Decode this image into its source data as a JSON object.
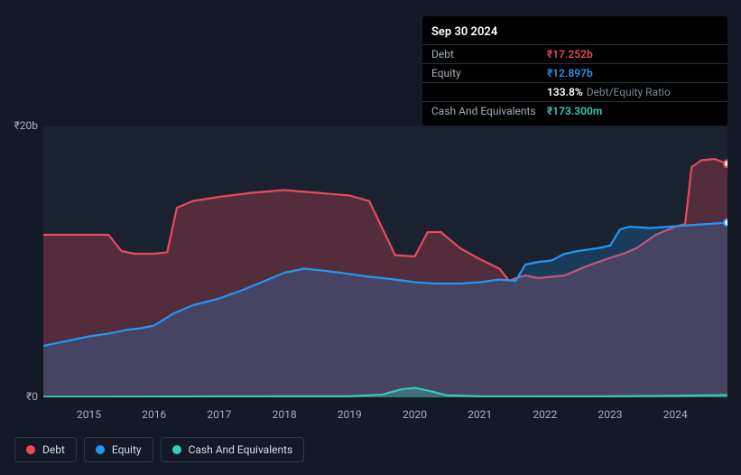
{
  "tooltip": {
    "date": "Sep 30 2024",
    "rows": [
      {
        "label": "Debt",
        "value": "₹17.252b",
        "color": "#e84a5f",
        "sub": ""
      },
      {
        "label": "Equity",
        "value": "₹12.897b",
        "color": "#2196f3",
        "sub": ""
      },
      {
        "label": "",
        "value": "133.8%",
        "color": "#ffffff",
        "sub": "Debt/Equity Ratio"
      },
      {
        "label": "Cash And Equivalents",
        "value": "₹173.300m",
        "color": "#35d0ba",
        "sub": ""
      }
    ]
  },
  "chart": {
    "type": "area",
    "background_color": "#1a2230",
    "page_background": "#131a25",
    "ylim": [
      0,
      20
    ],
    "yticks": [
      {
        "v": 0,
        "label": "₹0"
      },
      {
        "v": 20,
        "label": "₹20b"
      }
    ],
    "x_start_year": 2014.3,
    "x_end_year": 2024.8,
    "xticks": [
      2015,
      2016,
      2017,
      2018,
      2019,
      2020,
      2021,
      2022,
      2023,
      2024
    ],
    "series": [
      {
        "name": "Debt",
        "color": "#e84a5f",
        "fill": "rgba(232,74,95,0.28)",
        "line_width": 2.2,
        "points": [
          [
            2014.3,
            12.0
          ],
          [
            2014.7,
            12.0
          ],
          [
            2015.0,
            12.0
          ],
          [
            2015.3,
            12.0
          ],
          [
            2015.5,
            10.8
          ],
          [
            2015.7,
            10.6
          ],
          [
            2016.0,
            10.6
          ],
          [
            2016.2,
            10.7
          ],
          [
            2016.35,
            14.0
          ],
          [
            2016.6,
            14.5
          ],
          [
            2017.0,
            14.8
          ],
          [
            2017.5,
            15.1
          ],
          [
            2018.0,
            15.3
          ],
          [
            2018.5,
            15.1
          ],
          [
            2019.0,
            14.9
          ],
          [
            2019.3,
            14.5
          ],
          [
            2019.5,
            12.5
          ],
          [
            2019.7,
            10.5
          ],
          [
            2020.0,
            10.4
          ],
          [
            2020.2,
            12.2
          ],
          [
            2020.4,
            12.2
          ],
          [
            2020.7,
            11.0
          ],
          [
            2021.0,
            10.2
          ],
          [
            2021.3,
            9.5
          ],
          [
            2021.45,
            8.6
          ],
          [
            2021.55,
            8.8
          ],
          [
            2021.7,
            9.0
          ],
          [
            2021.9,
            8.8
          ],
          [
            2022.3,
            9.0
          ],
          [
            2022.7,
            9.8
          ],
          [
            2023.0,
            10.3
          ],
          [
            2023.2,
            10.6
          ],
          [
            2023.4,
            11.0
          ],
          [
            2023.7,
            12.0
          ],
          [
            2024.0,
            12.6
          ],
          [
            2024.15,
            12.8
          ],
          [
            2024.25,
            17.0
          ],
          [
            2024.4,
            17.5
          ],
          [
            2024.6,
            17.6
          ],
          [
            2024.8,
            17.25
          ]
        ]
      },
      {
        "name": "Equity",
        "color": "#2196f3",
        "fill": "rgba(33,150,243,0.22)",
        "line_width": 2.2,
        "points": [
          [
            2014.3,
            3.8
          ],
          [
            2014.7,
            4.2
          ],
          [
            2015.0,
            4.5
          ],
          [
            2015.3,
            4.7
          ],
          [
            2015.6,
            5.0
          ],
          [
            2015.8,
            5.1
          ],
          [
            2016.0,
            5.3
          ],
          [
            2016.3,
            6.2
          ],
          [
            2016.6,
            6.8
          ],
          [
            2017.0,
            7.3
          ],
          [
            2017.4,
            8.0
          ],
          [
            2017.8,
            8.8
          ],
          [
            2018.0,
            9.2
          ],
          [
            2018.3,
            9.5
          ],
          [
            2018.7,
            9.3
          ],
          [
            2019.0,
            9.1
          ],
          [
            2019.3,
            8.9
          ],
          [
            2019.7,
            8.7
          ],
          [
            2020.0,
            8.5
          ],
          [
            2020.3,
            8.4
          ],
          [
            2020.7,
            8.4
          ],
          [
            2021.0,
            8.5
          ],
          [
            2021.3,
            8.7
          ],
          [
            2021.55,
            8.6
          ],
          [
            2021.7,
            9.8
          ],
          [
            2021.9,
            10.0
          ],
          [
            2022.1,
            10.1
          ],
          [
            2022.3,
            10.6
          ],
          [
            2022.5,
            10.8
          ],
          [
            2022.8,
            11.0
          ],
          [
            2023.0,
            11.2
          ],
          [
            2023.15,
            12.4
          ],
          [
            2023.3,
            12.6
          ],
          [
            2023.6,
            12.5
          ],
          [
            2023.9,
            12.6
          ],
          [
            2024.2,
            12.7
          ],
          [
            2024.5,
            12.8
          ],
          [
            2024.8,
            12.9
          ]
        ]
      },
      {
        "name": "Cash And Equivalents",
        "color": "#35d0ba",
        "fill": "rgba(53,208,186,0.30)",
        "line_width": 2,
        "points": [
          [
            2014.3,
            0.05
          ],
          [
            2015.0,
            0.05
          ],
          [
            2016.0,
            0.06
          ],
          [
            2017.0,
            0.07
          ],
          [
            2018.0,
            0.08
          ],
          [
            2019.0,
            0.08
          ],
          [
            2019.5,
            0.2
          ],
          [
            2019.8,
            0.6
          ],
          [
            2020.0,
            0.7
          ],
          [
            2020.2,
            0.5
          ],
          [
            2020.5,
            0.15
          ],
          [
            2021.0,
            0.08
          ],
          [
            2022.0,
            0.07
          ],
          [
            2023.0,
            0.08
          ],
          [
            2024.0,
            0.12
          ],
          [
            2024.8,
            0.17
          ]
        ]
      }
    ]
  },
  "legend": {
    "items": [
      {
        "label": "Debt",
        "color": "#e84a5f"
      },
      {
        "label": "Equity",
        "color": "#2196f3"
      },
      {
        "label": "Cash And Equivalents",
        "color": "#35d0ba"
      }
    ],
    "border_color": "#2f3845",
    "text_color": "#d8dde4",
    "fontsize": 12
  },
  "typography": {
    "axis_color": "#a6aeb9",
    "axis_fontsize": 12
  }
}
